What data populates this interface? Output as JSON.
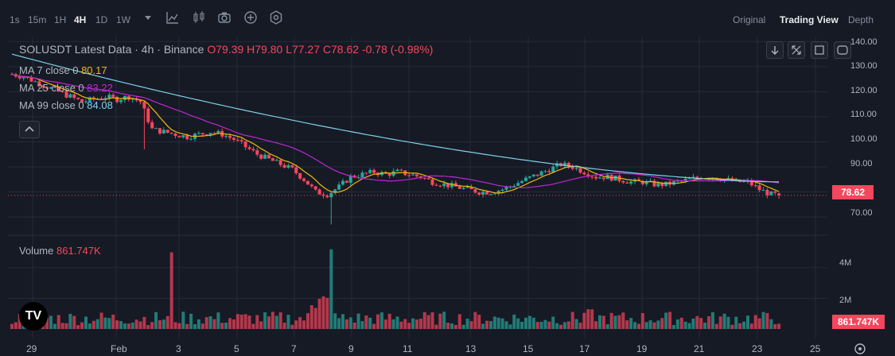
{
  "toolbar": {
    "intervals": [
      {
        "label": "1s",
        "active": false
      },
      {
        "label": "15m",
        "active": false
      },
      {
        "label": "1H",
        "active": false
      },
      {
        "label": "4H",
        "active": true
      },
      {
        "label": "1D",
        "active": false
      },
      {
        "label": "1W",
        "active": false
      }
    ],
    "icons": [
      "chevron-down-icon",
      "indicators-icon",
      "candle-type-icon",
      "camera-icon",
      "add-icon",
      "settings-icon"
    ],
    "views": [
      {
        "label": "Original",
        "active": false
      },
      {
        "label": "Trading View",
        "active": true
      },
      {
        "label": "Depth",
        "active": false
      }
    ]
  },
  "legend": {
    "symbol": "SOLUSDT Latest Data · 4h · Binance",
    "open": "O79.39",
    "high": "H79.80",
    "low": "L77.27",
    "close": "C78.62",
    "change": "-0.78 (-0.98%)",
    "ma7_label": "MA 7 close 0",
    "ma7_value": "80.17",
    "ma25_label": "MA 25 close 0",
    "ma25_value": "83.22",
    "ma99_label": "MA 99 close 0",
    "ma99_value": "84.08",
    "volume_label": "Volume",
    "volume_value": "861.747K"
  },
  "colors": {
    "up": "#26a69a",
    "down": "#f6465d",
    "ma7": "#f0b90b",
    "ma25": "#c026d3",
    "ma99": "#7fd1e6",
    "background": "#161a25",
    "grid": "#262b36"
  },
  "price_axis": {
    "ticks": [
      "140.00",
      "130.00",
      "120.00",
      "110.00",
      "100.00",
      "90.00",
      "70.00"
    ],
    "last_price": "78.62"
  },
  "volume_axis": {
    "ticks": [
      "4M",
      "2M"
    ],
    "last_volume": "861.747K"
  },
  "time_axis": {
    "ticks": [
      "29",
      "Feb",
      "3",
      "5",
      "7",
      "9",
      "11",
      "13",
      "15",
      "17",
      "19",
      "21",
      "23",
      "25"
    ]
  },
  "chart_data": {
    "type": "candlestick",
    "interval": "4h",
    "ylim": [
      64,
      142
    ],
    "last_candle": {
      "open": 79.39,
      "high": 79.8,
      "low": 77.27,
      "close": 78.62
    },
    "price_path": [
      127,
      126,
      124,
      122,
      120,
      118,
      116,
      117,
      118,
      117,
      118,
      116,
      105,
      104,
      103,
      102,
      103,
      104,
      103,
      101,
      98,
      95,
      93,
      91,
      89,
      85,
      80,
      79,
      82,
      86,
      87,
      88,
      87,
      88,
      87,
      86,
      84,
      83,
      82,
      81,
      80,
      80,
      81,
      83,
      85,
      87,
      89,
      91,
      90,
      88,
      86,
      86,
      85,
      84,
      84,
      83,
      83,
      84,
      85,
      86,
      86,
      85,
      84,
      84,
      81,
      79
    ],
    "ma7": 80.17,
    "ma25": 83.22,
    "ma99": 84.08,
    "volume_peaks_millions": [
      5.0,
      5.2
    ],
    "volume_ylim_millions": [
      0,
      5.6
    ]
  },
  "logo_text": "TV"
}
